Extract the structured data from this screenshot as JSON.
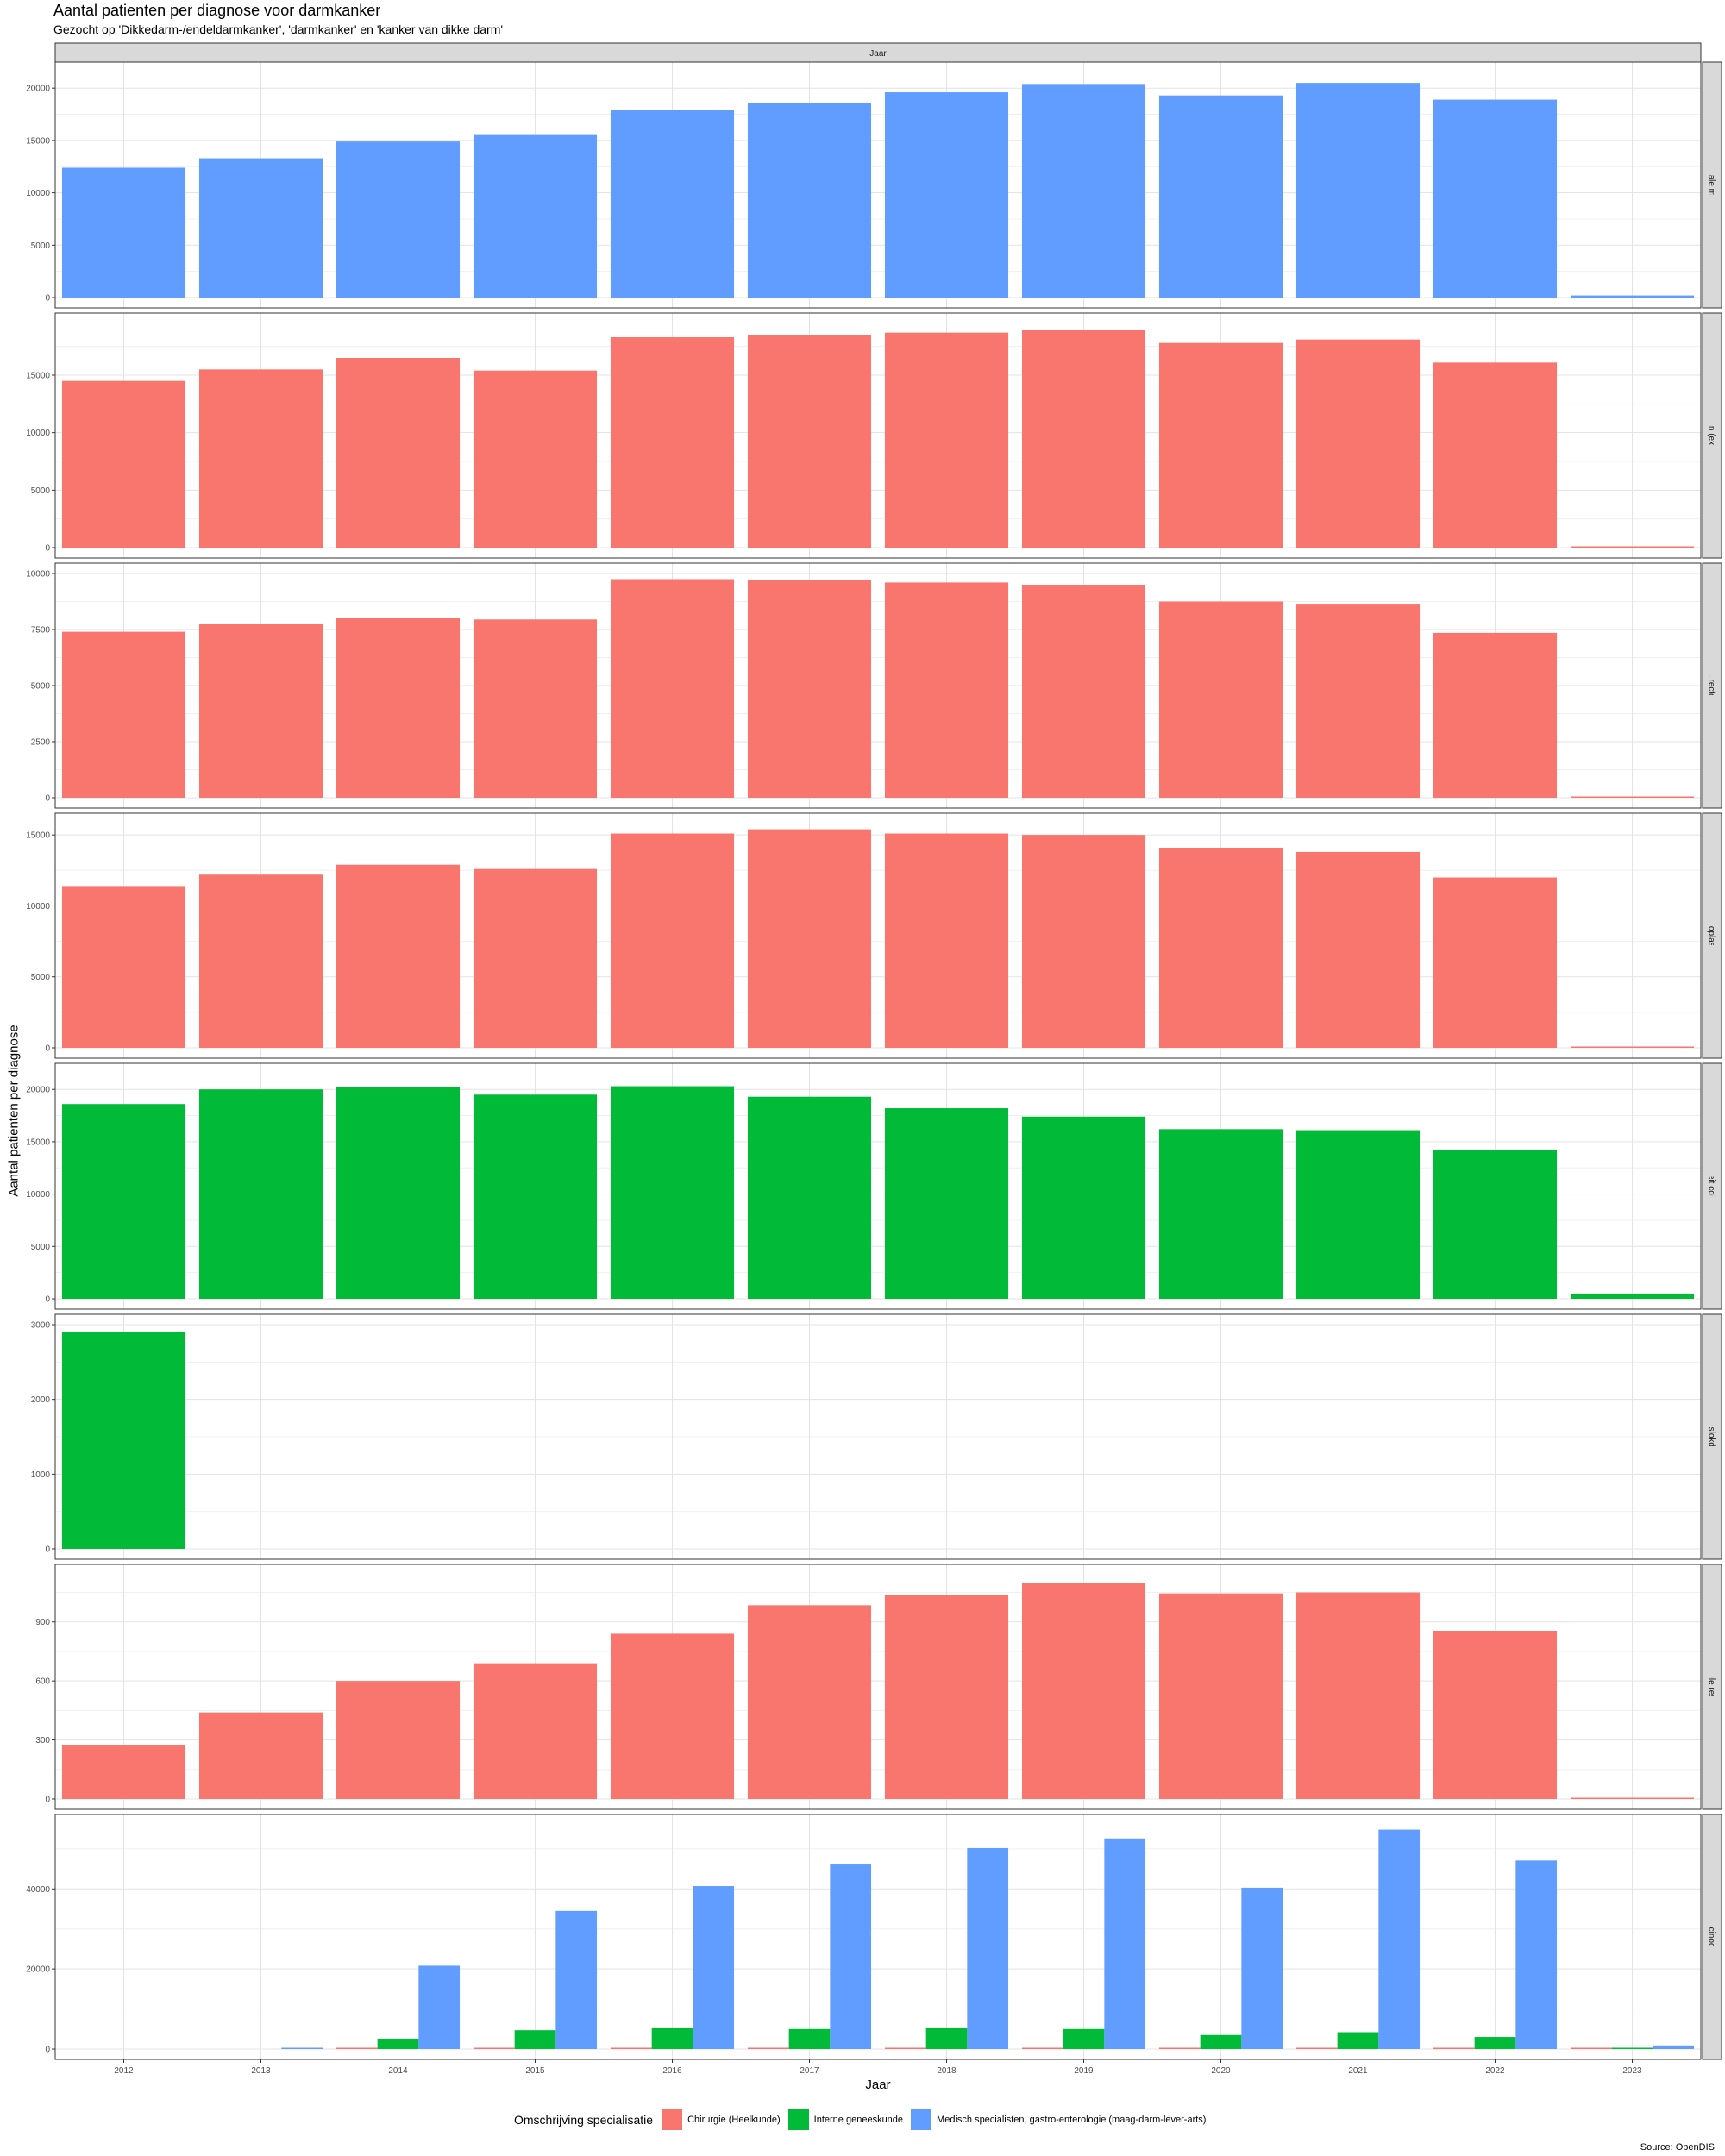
{
  "title": "Aantal patienten per diagnose voor darmkanker",
  "subtitle": "Gezocht op 'Dikkedarm-/endeldarmkanker', 'darmkanker' en 'kanker van dikke darm'",
  "source": "Source: OpenDIS",
  "colors": {
    "Chirurgie (Heelkunde)": "#F8766D",
    "Interne geneeskunde": "#00BA38",
    "Medisch specialisten, gastro-enterologie (maag-darm-lever-arts)": "#619CFF"
  },
  "chart_data": {
    "type": "bar",
    "title": "Aantal patienten per diagnose voor darmkanker",
    "subtitle": "Gezocht op 'Dikkedarm-/endeldarmkanker', 'darmkanker' en 'kanker van dikke darm'",
    "xlabel": "Jaar",
    "ylabel": "Aantal patienten per diagnose",
    "strip_top": "Jaar",
    "categories": [
      "2012",
      "2013",
      "2014",
      "2015",
      "2016",
      "2017",
      "2018",
      "2019",
      "2020",
      "2021",
      "2022",
      "2023"
    ],
    "legend_title": "Omschrijving specialisatie",
    "legend_position": "bottom",
    "legend": [
      "Chirurgie (Heelkunde)",
      "Interne geneeskunde",
      "Medisch specialisten, gastro-enterologie (maag-darm-lever-arts)"
    ],
    "grid": true,
    "facets": [
      {
        "label": "Colorectale maligniteit",
        "ylim": [
          0,
          21500
        ],
        "yticks": [
          0,
          5000,
          10000,
          15000,
          20000
        ],
        "series": [
          {
            "name": "Medisch specialisten, gastro-enterologie (maag-darm-lever-arts)",
            "values": [
              12400,
              13300,
              14900,
              15600,
              17900,
              18600,
              19600,
              20400,
              19300,
              20500,
              18900,
              200
            ]
          }
        ]
      },
      {
        "label": "Maligne neoplasma colon (exclusief sigmoid / rectum)",
        "ylim": [
          0,
          19500
        ],
        "yticks": [
          0,
          5000,
          10000,
          15000
        ],
        "series": [
          {
            "name": "Chirurgie (Heelkunde)",
            "values": [
              14500,
              15500,
              16500,
              15400,
              18300,
              18500,
              18700,
              18900,
              17800,
              18100,
              16100,
              50
            ]
          }
        ]
      },
      {
        "label": "Maligne neoplasma recto-sigmoid overgang",
        "ylim": [
          0,
          10000
        ],
        "yticks": [
          0,
          2500,
          5000,
          7500,
          10000
        ],
        "series": [
          {
            "name": "Chirurgie (Heelkunde)",
            "values": [
              7400,
              7750,
              8000,
              7950,
              9750,
              9700,
              9600,
              9500,
              8750,
              8650,
              7350,
              30
            ]
          }
        ]
      },
      {
        "label": "Maligne neoplasma rectum",
        "ylim": [
          0,
          15800
        ],
        "yticks": [
          0,
          5000,
          10000,
          15000
        ],
        "series": [
          {
            "name": "Chirurgie (Heelkunde)",
            "values": [
              11400,
              12200,
              12900,
              12600,
              15100,
              15400,
              15100,
              15000,
              14100,
              13800,
              12000,
              40
            ]
          }
        ]
      },
      {
        "label": "Maligniteit colorectaal",
        "ylim": [
          0,
          21500
        ],
        "yticks": [
          0,
          5000,
          10000,
          15000,
          20000
        ],
        "series": [
          {
            "name": "Interne geneeskunde",
            "values": [
              18600,
              20000,
              20200,
              19500,
              20300,
              19300,
              18200,
              17400,
              16200,
              16100,
              14200,
              500
            ]
          }
        ]
      },
      {
        "label": "Maligniteit slokdarm/cardia",
        "ylim": [
          0,
          3000
        ],
        "yticks": [
          0,
          1000,
          2000,
          3000
        ],
        "series": [
          {
            "name": "Interne geneeskunde",
            "values": [
              2900,
              null,
              null,
              null,
              null,
              null,
              null,
              null,
              null,
              null,
              null,
              null
            ]
          }
        ]
      },
      {
        "label": "Pre-operatieve systemische therapie + laparoscopische/conventionele resectie en anastomose van colorectaal carcinoom zonder uitzaaingen",
        "ylim": [
          0,
          1140
        ],
        "yticks": [
          0,
          300,
          600,
          900
        ],
        "series": [
          {
            "name": "Chirurgie (Heelkunde)",
            "values": [
              275,
              440,
              600,
              690,
              840,
              985,
              1035,
              1100,
              1045,
              1050,
              855,
              5
            ]
          }
        ]
      },
      {
        "label": "Screening colorectaal carcinoom (bevolkingsonderzoek)",
        "ylim": [
          0,
          56000
        ],
        "yticks": [
          0,
          20000,
          40000
        ],
        "series": [
          {
            "name": "Chirurgie (Heelkunde)",
            "values": [
              null,
              null,
              0,
              0,
              0,
              0,
              0,
              100,
              100,
              100,
              100,
              0
            ]
          },
          {
            "name": "Interne geneeskunde",
            "values": [
              null,
              null,
              2600,
              4700,
              5400,
              5000,
              5400,
              5000,
              3500,
              4200,
              3000,
              0
            ]
          },
          {
            "name": "Medisch specialisten, gastro-enterologie (maag-darm-lever-arts)",
            "values": [
              null,
              300,
              20800,
              34500,
              40700,
              46300,
              50200,
              52600,
              40300,
              54800,
              47100,
              900
            ]
          }
        ]
      }
    ]
  }
}
